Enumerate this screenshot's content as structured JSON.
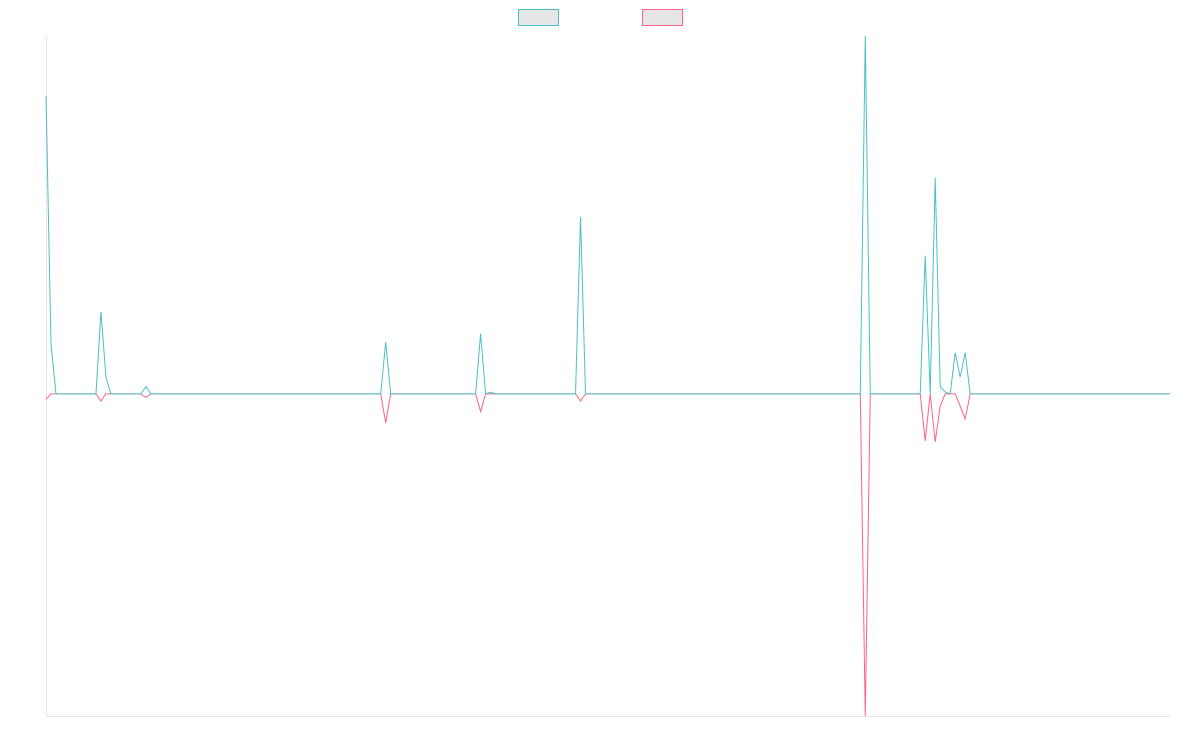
{
  "chart_data": {
    "type": "line",
    "legend": "top",
    "ylim": [
      -9,
      10
    ],
    "series": [
      {
        "color": "#4bc0c0",
        "values": [
          8.33,
          1.4,
          0,
          0,
          0,
          0,
          0,
          0,
          0,
          0,
          0,
          2.29,
          0.47,
          0,
          0,
          0,
          0,
          0,
          0,
          0,
          0.2,
          0,
          0,
          0,
          0,
          0,
          0,
          0,
          0,
          0,
          0,
          0,
          0,
          0,
          0,
          0,
          0,
          0,
          0,
          0,
          0,
          0,
          0,
          0,
          0,
          0,
          0,
          0,
          0,
          0,
          0,
          0,
          0,
          0,
          0,
          0,
          0,
          0,
          0,
          0,
          0,
          0,
          0,
          0,
          0,
          0,
          0,
          0,
          1.45,
          0,
          0,
          0,
          0,
          0,
          0,
          0,
          0,
          0,
          0,
          0,
          0,
          0,
          0,
          0,
          0,
          0,
          0,
          1.68,
          0,
          0.05,
          0,
          0,
          0,
          0,
          0,
          0,
          0,
          0,
          0,
          0,
          0,
          0,
          0,
          0,
          0,
          0,
          0,
          4.95,
          0,
          0,
          0,
          0,
          0,
          0,
          0,
          0,
          0,
          0,
          0,
          0,
          0,
          0,
          0,
          0,
          0,
          0,
          0,
          0,
          0,
          0,
          0,
          0,
          0,
          0,
          0,
          0,
          0,
          0,
          0,
          0,
          0,
          0,
          0,
          0,
          0,
          0,
          0,
          0,
          0,
          0,
          0,
          0,
          0,
          0,
          0,
          0,
          0,
          0,
          0,
          0,
          0,
          0,
          0,
          0,
          10,
          0,
          0,
          0,
          0,
          0,
          0,
          0,
          0,
          0,
          0,
          0,
          3.86,
          0,
          6.04,
          0.2,
          0.05,
          0,
          1.15,
          0.47,
          1.15,
          0,
          0,
          0,
          0,
          0,
          0,
          0,
          0,
          0,
          0,
          0,
          0,
          0,
          0,
          0,
          0,
          0,
          0,
          0,
          0,
          0,
          0,
          0,
          0,
          0,
          0,
          0,
          0,
          0,
          0,
          0,
          0,
          0,
          0,
          0,
          0,
          0,
          0,
          0,
          0,
          0
        ]
      },
      {
        "color": "#ff6384",
        "values": [
          -0.15,
          0,
          0,
          0,
          0,
          0,
          0,
          0,
          0,
          0,
          0,
          -0.2,
          0,
          0,
          0,
          0,
          0,
          0,
          0,
          0,
          -0.1,
          0,
          0,
          0,
          0,
          0,
          0,
          0,
          0,
          0,
          0,
          0,
          0,
          0,
          0,
          0,
          0,
          0,
          0,
          0,
          0,
          0,
          0,
          0,
          0,
          0,
          0,
          0,
          0,
          0,
          0,
          0,
          0,
          0,
          0,
          0,
          0,
          0,
          0,
          0,
          0,
          0,
          0,
          0,
          0,
          0,
          0,
          0,
          -0.81,
          0,
          0,
          0,
          0,
          0,
          0,
          0,
          0,
          0,
          0,
          0,
          0,
          0,
          0,
          0,
          0,
          0,
          0,
          -0.5,
          0,
          0,
          0,
          0,
          0,
          0,
          0,
          0,
          0,
          0,
          0,
          0,
          0,
          0,
          0,
          0,
          0,
          0,
          0,
          -0.2,
          0,
          0,
          0,
          0,
          0,
          0,
          0,
          0,
          0,
          0,
          0,
          0,
          0,
          0,
          0,
          0,
          0,
          0,
          0,
          0,
          0,
          0,
          0,
          0,
          0,
          0,
          0,
          0,
          0,
          0,
          0,
          0,
          0,
          0,
          0,
          0,
          0,
          0,
          0,
          0,
          0,
          0,
          0,
          0,
          0,
          0,
          0,
          0,
          0,
          0,
          0,
          0,
          0,
          0,
          0,
          0,
          -9,
          0,
          0,
          0,
          0,
          0,
          0,
          0,
          0,
          0,
          0,
          0,
          -1.31,
          0,
          -1.34,
          -0.34,
          0,
          0,
          0,
          -0.34,
          -0.7,
          0,
          0,
          0,
          0,
          0,
          0,
          0,
          0,
          0,
          0,
          0,
          0,
          0,
          0,
          0,
          0,
          0,
          0,
          0,
          0,
          0,
          0,
          0,
          0,
          0,
          0,
          0,
          0,
          0,
          0,
          0,
          0,
          0,
          0,
          0,
          0,
          0,
          0,
          0,
          0,
          0
        ]
      }
    ]
  }
}
